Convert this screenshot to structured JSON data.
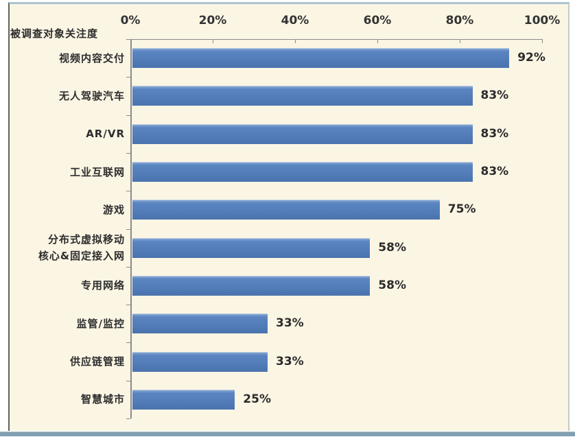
{
  "chart_data": {
    "type": "bar",
    "orientation": "horizontal",
    "title": "被调查对象关注度",
    "categories": [
      "视频内容交付",
      "无人驾驶汽车",
      "AR/VR",
      "工业互联网",
      "游戏",
      "分布式虚拟移动\n核心&固定接入网",
      "专用网络",
      "监管/监控",
      "供应链管理",
      "智慧城市"
    ],
    "values": [
      92,
      83,
      83,
      83,
      75,
      58,
      58,
      33,
      33,
      25
    ],
    "value_labels": [
      "92%",
      "83%",
      "83%",
      "83%",
      "75%",
      "58%",
      "58%",
      "33%",
      "33%",
      "25%"
    ],
    "x_ticks": [
      "0%",
      "20%",
      "40%",
      "60%",
      "80%",
      "100%"
    ],
    "xlim": [
      0,
      100
    ],
    "xlabel": "",
    "ylabel": "",
    "grid": false,
    "legend": "none",
    "colors": {
      "bar": "#517cb8",
      "background": "#fbf5e4",
      "axis": "#8a8a8a",
      "text": "#2d2d2d",
      "frame_top": "#a9c4cf",
      "frame_bottom": "#819fb0"
    }
  }
}
